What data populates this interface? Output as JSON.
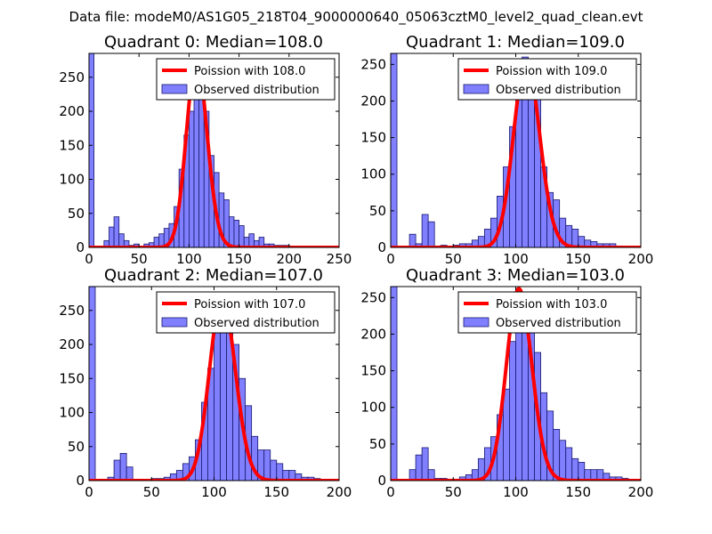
{
  "figure_title": "Data file: modeM0/AS1G05_218T04_9000000640_05063cztM0_level2_quad_clean.evt",
  "colors": {
    "bar_fill": "#7f7fff",
    "bar_edge": "#1a1a6e",
    "poisson_line": "#ff0000",
    "legend_edge": "#000000"
  },
  "chart_data": [
    {
      "type": "bar",
      "title": "Quadrant 0: Median=108.0",
      "xlim": [
        0,
        250
      ],
      "ylim": [
        0,
        285
      ],
      "xticks": [
        0,
        50,
        100,
        150,
        200,
        250
      ],
      "yticks": [
        0,
        50,
        100,
        150,
        200,
        250
      ],
      "bin_width": 5,
      "bins": [
        [
          0,
          285
        ],
        [
          15,
          10
        ],
        [
          20,
          30
        ],
        [
          25,
          45
        ],
        [
          30,
          20
        ],
        [
          35,
          10
        ],
        [
          40,
          3
        ],
        [
          45,
          5
        ],
        [
          50,
          2
        ],
        [
          55,
          5
        ],
        [
          60,
          7
        ],
        [
          65,
          15
        ],
        [
          70,
          20
        ],
        [
          75,
          28
        ],
        [
          80,
          35
        ],
        [
          85,
          60
        ],
        [
          90,
          115
        ],
        [
          95,
          165
        ],
        [
          100,
          200
        ],
        [
          105,
          270
        ],
        [
          110,
          240
        ],
        [
          115,
          200
        ],
        [
          120,
          135
        ],
        [
          125,
          110
        ],
        [
          130,
          80
        ],
        [
          135,
          70
        ],
        [
          140,
          45
        ],
        [
          145,
          40
        ],
        [
          150,
          32
        ],
        [
          155,
          15
        ],
        [
          160,
          20
        ],
        [
          165,
          10
        ],
        [
          170,
          15
        ],
        [
          175,
          5
        ],
        [
          180,
          5
        ],
        [
          185,
          3
        ],
        [
          190,
          3
        ],
        [
          195,
          3
        ],
        [
          200,
          2
        ],
        [
          205,
          2
        ]
      ],
      "poisson_mean": 108.0,
      "poisson_peak": 275,
      "legend": [
        "Poission with 108.0",
        "Observed distribution"
      ]
    },
    {
      "type": "bar",
      "title": "Quadrant 1: Median=109.0",
      "xlim": [
        0,
        200
      ],
      "ylim": [
        0,
        265
      ],
      "xticks": [
        0,
        50,
        100,
        150,
        200
      ],
      "yticks": [
        0,
        50,
        100,
        150,
        200,
        250
      ],
      "bin_width": 5,
      "bins": [
        [
          0,
          265
        ],
        [
          15,
          18
        ],
        [
          20,
          5
        ],
        [
          25,
          45
        ],
        [
          30,
          35
        ],
        [
          35,
          2
        ],
        [
          40,
          3
        ],
        [
          45,
          1
        ],
        [
          50,
          3
        ],
        [
          55,
          5
        ],
        [
          60,
          5
        ],
        [
          65,
          10
        ],
        [
          70,
          15
        ],
        [
          75,
          25
        ],
        [
          80,
          40
        ],
        [
          85,
          70
        ],
        [
          90,
          110
        ],
        [
          95,
          165
        ],
        [
          100,
          240
        ],
        [
          105,
          260
        ],
        [
          110,
          240
        ],
        [
          115,
          205
        ],
        [
          120,
          110
        ],
        [
          125,
          75
        ],
        [
          130,
          65
        ],
        [
          135,
          40
        ],
        [
          140,
          30
        ],
        [
          145,
          25
        ],
        [
          150,
          15
        ],
        [
          155,
          10
        ],
        [
          160,
          8
        ],
        [
          165,
          5
        ],
        [
          170,
          5
        ],
        [
          175,
          5
        ],
        [
          180,
          2
        ]
      ],
      "poisson_mean": 109.0,
      "poisson_peak": 255,
      "legend": [
        "Poission with 109.0",
        "Observed distribution"
      ]
    },
    {
      "type": "bar",
      "title": "Quadrant 2: Median=107.0",
      "xlim": [
        0,
        200
      ],
      "ylim": [
        0,
        285
      ],
      "xticks": [
        0,
        50,
        100,
        150,
        200
      ],
      "yticks": [
        0,
        50,
        100,
        150,
        200,
        250
      ],
      "bin_width": 5,
      "bins": [
        [
          0,
          285
        ],
        [
          15,
          5
        ],
        [
          20,
          30
        ],
        [
          25,
          40
        ],
        [
          30,
          20
        ],
        [
          35,
          2
        ],
        [
          40,
          2
        ],
        [
          45,
          2
        ],
        [
          50,
          3
        ],
        [
          55,
          3
        ],
        [
          60,
          5
        ],
        [
          65,
          10
        ],
        [
          70,
          15
        ],
        [
          75,
          25
        ],
        [
          80,
          35
        ],
        [
          85,
          60
        ],
        [
          90,
          115
        ],
        [
          95,
          165
        ],
        [
          100,
          240
        ],
        [
          105,
          270
        ],
        [
          110,
          245
        ],
        [
          115,
          200
        ],
        [
          120,
          150
        ],
        [
          125,
          110
        ],
        [
          130,
          65
        ],
        [
          135,
          45
        ],
        [
          140,
          45
        ],
        [
          145,
          30
        ],
        [
          150,
          25
        ],
        [
          155,
          15
        ],
        [
          160,
          15
        ],
        [
          165,
          10
        ],
        [
          170,
          5
        ],
        [
          175,
          5
        ],
        [
          180,
          3
        ],
        [
          185,
          2
        ]
      ],
      "poisson_mean": 107.0,
      "poisson_peak": 268,
      "legend": [
        "Poission with 107.0",
        "Observed distribution"
      ]
    },
    {
      "type": "bar",
      "title": "Quadrant 3: Median=103.0",
      "xlim": [
        0,
        200
      ],
      "ylim": [
        0,
        265
      ],
      "xticks": [
        0,
        50,
        100,
        150,
        200
      ],
      "yticks": [
        0,
        50,
        100,
        150,
        200,
        250
      ],
      "bin_width": 5,
      "bins": [
        [
          0,
          265
        ],
        [
          15,
          15
        ],
        [
          20,
          35
        ],
        [
          25,
          45
        ],
        [
          30,
          15
        ],
        [
          35,
          3
        ],
        [
          40,
          3
        ],
        [
          45,
          2
        ],
        [
          50,
          2
        ],
        [
          55,
          5
        ],
        [
          60,
          8
        ],
        [
          65,
          15
        ],
        [
          70,
          30
        ],
        [
          75,
          45
        ],
        [
          80,
          60
        ],
        [
          85,
          90
        ],
        [
          90,
          125
        ],
        [
          95,
          190
        ],
        [
          100,
          250
        ],
        [
          105,
          215
        ],
        [
          110,
          210
        ],
        [
          115,
          175
        ],
        [
          120,
          120
        ],
        [
          125,
          95
        ],
        [
          130,
          70
        ],
        [
          135,
          55
        ],
        [
          140,
          45
        ],
        [
          145,
          30
        ],
        [
          150,
          25
        ],
        [
          155,
          15
        ],
        [
          160,
          15
        ],
        [
          165,
          15
        ],
        [
          170,
          10
        ],
        [
          175,
          5
        ],
        [
          180,
          5
        ],
        [
          185,
          3
        ]
      ],
      "poisson_mean": 103.0,
      "poisson_peak": 262,
      "legend": [
        "Poission with 103.0",
        "Observed distribution"
      ]
    }
  ]
}
